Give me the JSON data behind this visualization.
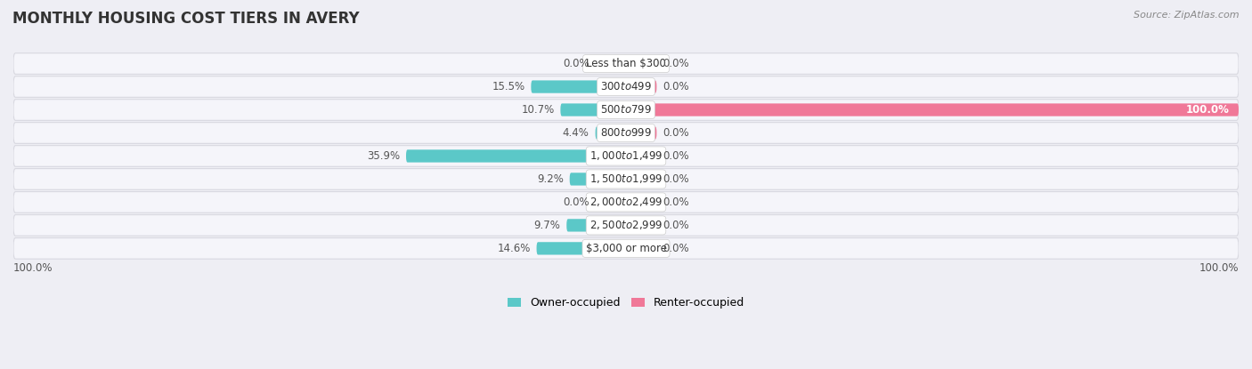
{
  "title": "MONTHLY HOUSING COST TIERS IN AVERY",
  "source": "Source: ZipAtlas.com",
  "categories": [
    "Less than $300",
    "$300 to $499",
    "$500 to $799",
    "$800 to $999",
    "$1,000 to $1,499",
    "$1,500 to $1,999",
    "$2,000 to $2,499",
    "$2,500 to $2,999",
    "$3,000 or more"
  ],
  "owner_values": [
    0.0,
    15.5,
    10.7,
    4.4,
    35.9,
    9.2,
    0.0,
    9.7,
    14.6
  ],
  "renter_values": [
    0.0,
    0.0,
    100.0,
    0.0,
    0.0,
    0.0,
    0.0,
    0.0,
    0.0
  ],
  "owner_color": "#5BC8C8",
  "renter_color": "#F07898",
  "owner_label": "Owner-occupied",
  "renter_label": "Renter-occupied",
  "background_color": "#eeeef4",
  "row_bg_color": "#f5f5fa",
  "row_border_color": "#d8d8e0",
  "title_fontsize": 12,
  "label_fontsize": 8.5,
  "axis_max": 100,
  "stub_val": 5.0,
  "figsize": [
    14.06,
    4.15
  ],
  "dpi": 100,
  "bottom_left_label": "100.0%",
  "bottom_right_label": "100.0%"
}
